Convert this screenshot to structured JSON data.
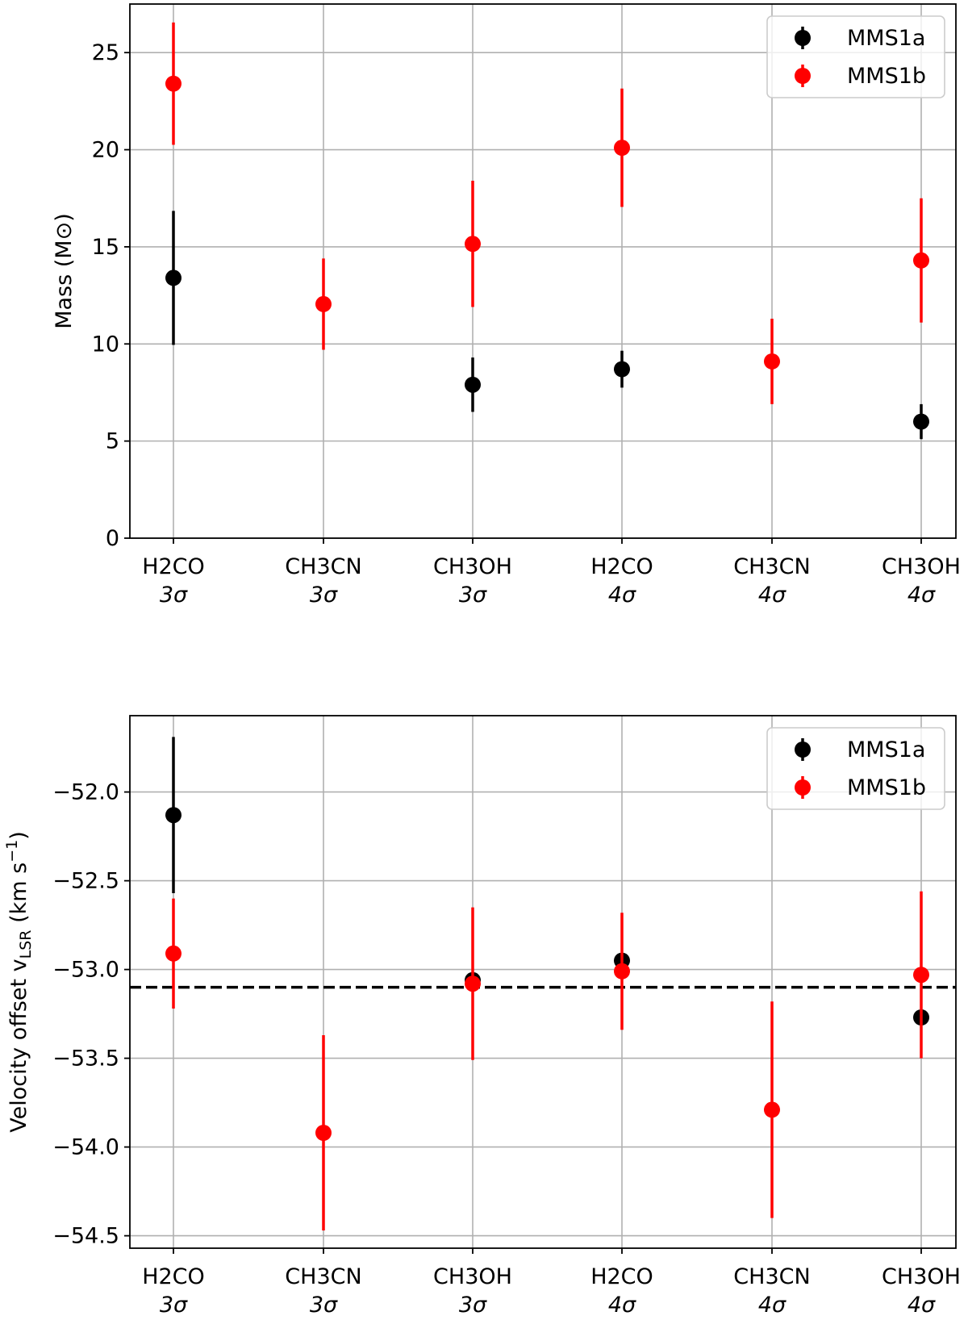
{
  "chart_data": [
    {
      "type": "scatter",
      "panel": "top",
      "ylabel": "Mass (M⊙)",
      "xlabel": "",
      "ylim": [
        0,
        27.5
      ],
      "yticks": [
        0,
        5,
        10,
        15,
        20,
        25
      ],
      "grid": true,
      "legend_position": "top-right",
      "categories": [
        {
          "line1": "H2CO",
          "line2": "3σ"
        },
        {
          "line1": "CH3CN",
          "line2": "3σ"
        },
        {
          "line1": "CH3OH",
          "line2": "3σ"
        },
        {
          "line1": "H2CO",
          "line2": "4σ"
        },
        {
          "line1": "CH3CN",
          "line2": "4σ"
        },
        {
          "line1": "CH3OH",
          "line2": "4σ"
        }
      ],
      "series": [
        {
          "name": "MMS1a",
          "color": "#000000",
          "values": [
            13.4,
            null,
            7.9,
            8.7,
            null,
            6.0
          ],
          "errors": [
            3.45,
            null,
            1.4,
            0.95,
            null,
            0.9
          ]
        },
        {
          "name": "MMS1b",
          "color": "#ff0000",
          "values": [
            23.4,
            12.05,
            15.15,
            20.1,
            9.1,
            14.3
          ],
          "errors": [
            3.15,
            2.35,
            3.25,
            3.05,
            2.2,
            3.2
          ]
        }
      ]
    },
    {
      "type": "scatter",
      "panel": "bottom",
      "ylabel": "Velocity offset v",
      "ylabel_sub": "LSR",
      "ylabel_unit": " (km s",
      "ylabel_sup": "−1",
      "ylabel_end": ")",
      "xlabel": "",
      "ylim": [
        -54.57,
        -51.57
      ],
      "yticks": [
        -52.0,
        -52.5,
        -53.0,
        -53.5,
        -54.0,
        -54.5
      ],
      "ytick_labels": [
        "−52.0",
        "−52.5",
        "−53.0",
        "−53.5",
        "−54.0",
        "−54.5"
      ],
      "grid": true,
      "legend_position": "top-right",
      "reference_line": -53.1,
      "categories": [
        {
          "line1": "H2CO",
          "line2": "3σ"
        },
        {
          "line1": "CH3CN",
          "line2": "3σ"
        },
        {
          "line1": "CH3OH",
          "line2": "3σ"
        },
        {
          "line1": "H2CO",
          "line2": "4σ"
        },
        {
          "line1": "CH3CN",
          "line2": "4σ"
        },
        {
          "line1": "CH3OH",
          "line2": "4σ"
        }
      ],
      "series": [
        {
          "name": "MMS1a",
          "color": "#000000",
          "values": [
            -52.13,
            null,
            -53.06,
            -52.95,
            null,
            -53.27
          ],
          "errors": [
            0.44,
            null,
            0.0,
            0.0,
            null,
            0.0
          ]
        },
        {
          "name": "MMS1b",
          "color": "#ff0000",
          "values": [
            -52.91,
            -53.92,
            -53.08,
            -53.01,
            -53.79,
            -53.03
          ],
          "errors": [
            0.31,
            0.55,
            0.43,
            0.33,
            0.61,
            0.47
          ]
        }
      ]
    }
  ]
}
